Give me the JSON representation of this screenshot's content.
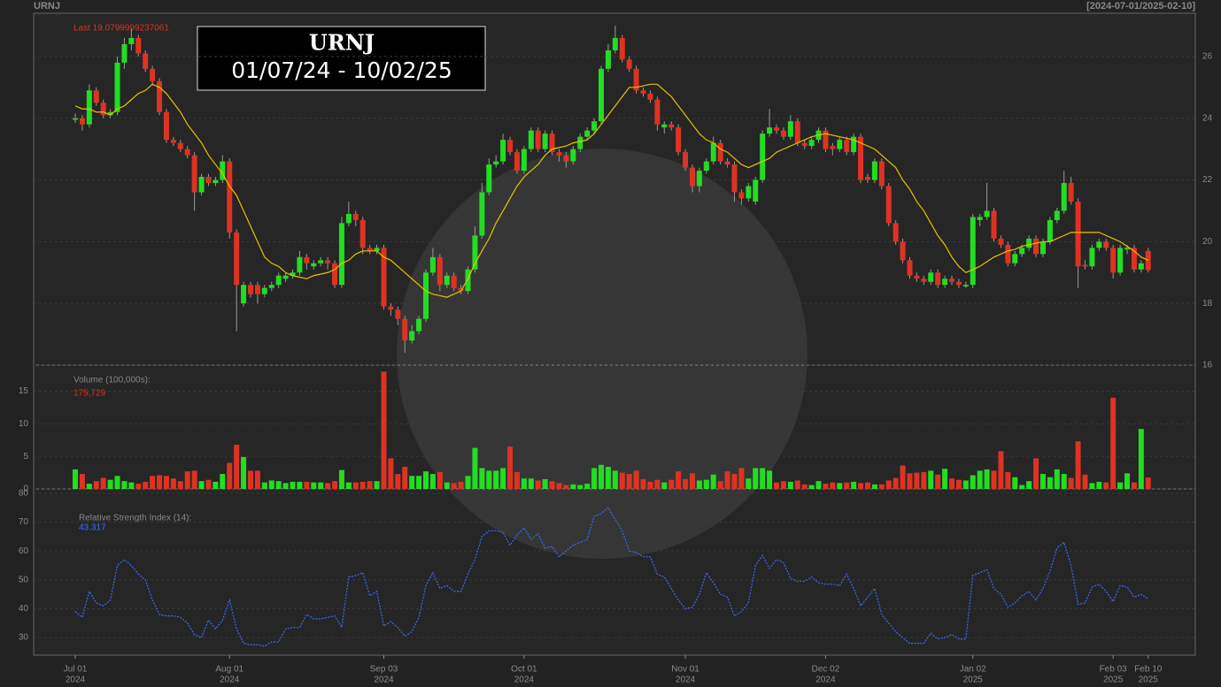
{
  "header": {
    "symbol": "URNJ",
    "range": "[2024-07-01/2025-02-10]"
  },
  "chart_data": [
    {
      "type": "candlestick",
      "title": "URNJ",
      "subtitle": "01/07/24 - 10/02/25",
      "last_label": "Last 19.0799999237061",
      "up_color": "#22dd22",
      "down_color": "#dd3322",
      "sma_color": "#e8c000",
      "ylim": [
        16,
        27.4
      ],
      "yticks": [
        16,
        18,
        20,
        22,
        24,
        26
      ],
      "grid": true,
      "open": [
        23.95,
        24.0,
        23.8,
        24.9,
        24.5,
        24.1,
        24.2,
        25.8,
        26.4,
        26.6,
        26.1,
        25.6,
        25.2,
        24.2,
        23.3,
        23.2,
        23.0,
        22.8,
        21.6,
        22.1,
        21.9,
        22.0,
        22.6,
        20.3,
        18.0,
        18.6,
        18.6,
        18.3,
        18.5,
        18.6,
        18.8,
        18.9,
        19.0,
        19.5,
        19.2,
        19.3,
        19.4,
        19.3,
        18.6,
        20.6,
        20.9,
        20.7,
        19.8,
        19.7,
        19.8,
        17.9,
        17.8,
        17.5,
        16.8,
        17.1,
        17.5,
        19.0,
        19.5,
        18.6,
        18.9,
        18.5,
        18.4,
        19.1,
        20.2,
        21.6,
        22.5,
        22.6,
        23.3,
        22.9,
        22.3,
        23.0,
        23.6,
        23.0,
        23.5,
        22.9,
        22.8,
        22.6,
        23.0,
        23.4,
        23.6,
        23.9,
        25.6,
        26.2,
        26.6,
        25.9,
        25.6,
        24.9,
        24.8,
        24.6,
        23.7,
        23.8,
        23.7,
        22.9,
        22.4,
        21.8,
        22.3,
        22.6,
        23.2,
        22.6,
        22.5,
        21.6,
        21.4,
        21.3,
        22.0,
        23.5,
        23.7,
        23.6,
        23.4,
        23.9,
        23.2,
        23.1,
        23.3,
        23.6,
        23.1,
        23.0,
        23.3,
        22.9,
        23.4,
        22.1,
        22.0,
        22.6,
        21.8,
        20.6,
        20.0,
        19.4,
        18.9,
        18.8,
        18.7,
        19.0,
        18.6,
        18.8,
        18.7,
        18.55,
        18.6,
        20.7,
        20.8,
        21.0,
        20.1,
        19.9,
        19.3,
        19.6,
        19.8,
        20.1,
        19.6,
        20.0,
        20.7,
        21.0,
        21.9,
        21.3,
        19.25,
        19.2,
        19.8,
        20.0,
        19.8,
        19.0,
        19.75,
        19.8,
        19.1,
        19.7
      ],
      "high": [
        24.15,
        24.1,
        25.1,
        25.0,
        24.6,
        24.3,
        26.0,
        26.6,
        26.9,
        26.7,
        26.2,
        25.7,
        25.3,
        24.3,
        23.4,
        23.3,
        23.1,
        22.9,
        22.2,
        22.2,
        22.1,
        22.8,
        22.7,
        20.4,
        18.7,
        18.7,
        18.7,
        18.6,
        18.7,
        19.0,
        19.0,
        19.1,
        19.7,
        19.6,
        19.4,
        19.5,
        19.5,
        19.4,
        20.8,
        21.3,
        21.0,
        20.8,
        19.9,
        19.9,
        19.9,
        18.0,
        17.9,
        17.6,
        17.3,
        17.6,
        19.1,
        19.8,
        19.6,
        19.0,
        19.0,
        18.6,
        19.2,
        20.5,
        21.9,
        22.7,
        22.8,
        23.5,
        23.4,
        23.0,
        23.1,
        23.7,
        23.7,
        23.6,
        23.6,
        23.0,
        22.9,
        23.1,
        23.5,
        23.7,
        24.0,
        25.7,
        26.4,
        27.0,
        26.7,
        26.0,
        25.7,
        25.0,
        24.9,
        24.7,
        23.9,
        23.9,
        23.8,
        23.0,
        22.5,
        22.4,
        22.7,
        23.4,
        23.3,
        22.7,
        22.6,
        21.7,
        21.9,
        22.1,
        23.6,
        24.3,
        23.8,
        23.7,
        24.1,
        24.0,
        23.3,
        23.4,
        23.7,
        23.7,
        23.2,
        23.4,
        23.4,
        23.5,
        23.5,
        22.2,
        22.7,
        22.7,
        21.9,
        20.7,
        20.1,
        19.5,
        19.0,
        18.9,
        19.1,
        19.1,
        18.9,
        18.9,
        18.8,
        18.7,
        20.9,
        20.9,
        21.9,
        21.1,
        20.2,
        20.0,
        19.7,
        19.9,
        20.2,
        20.2,
        20.1,
        20.8,
        21.1,
        22.3,
        22.1,
        21.4,
        19.4,
        19.9,
        20.1,
        20.1,
        19.9,
        19.9,
        19.9,
        19.9,
        19.4,
        19.8
      ],
      "low": [
        23.85,
        23.6,
        23.7,
        24.4,
        24.0,
        24.0,
        24.1,
        25.6,
        26.2,
        26.0,
        25.5,
        25.1,
        24.1,
        23.2,
        23.1,
        22.9,
        22.7,
        21.0,
        21.5,
        21.8,
        21.8,
        21.9,
        20.1,
        17.1,
        17.9,
        18.2,
        18.0,
        18.2,
        18.4,
        18.5,
        18.7,
        18.8,
        18.9,
        19.1,
        19.1,
        19.2,
        19.1,
        18.5,
        18.5,
        20.5,
        20.5,
        19.6,
        19.6,
        19.6,
        17.8,
        17.6,
        17.3,
        16.4,
        16.7,
        17.0,
        17.4,
        18.9,
        18.4,
        18.5,
        18.4,
        18.3,
        18.3,
        19.0,
        20.1,
        21.5,
        22.4,
        22.5,
        22.8,
        22.2,
        22.2,
        22.9,
        22.9,
        22.9,
        22.8,
        22.6,
        22.4,
        22.5,
        22.9,
        23.3,
        23.5,
        23.8,
        25.5,
        26.1,
        25.8,
        25.5,
        24.8,
        24.7,
        24.5,
        23.6,
        23.5,
        23.6,
        22.8,
        22.3,
        21.6,
        21.6,
        22.2,
        22.5,
        22.5,
        22.4,
        21.3,
        21.2,
        21.3,
        21.2,
        21.9,
        23.4,
        23.5,
        23.3,
        23.3,
        23.1,
        23.0,
        23.0,
        23.2,
        22.9,
        22.8,
        22.9,
        22.8,
        22.8,
        21.9,
        21.9,
        21.9,
        21.7,
        20.5,
        19.9,
        19.3,
        18.8,
        18.7,
        18.6,
        18.6,
        18.5,
        18.5,
        18.6,
        18.5,
        18.5,
        18.5,
        20.5,
        20.7,
        20.0,
        19.8,
        19.2,
        19.2,
        19.5,
        19.7,
        19.5,
        19.5,
        19.9,
        20.6,
        20.9,
        21.2,
        18.5,
        19.1,
        19.1,
        19.7,
        19.7,
        18.8,
        18.9,
        19.6,
        19.0,
        19.0,
        19.0
      ],
      "close": [
        24.0,
        23.8,
        24.9,
        24.5,
        24.1,
        24.2,
        25.8,
        26.4,
        26.6,
        26.1,
        25.6,
        25.2,
        24.2,
        23.3,
        23.2,
        23.0,
        22.8,
        21.6,
        22.1,
        21.9,
        22.0,
        22.6,
        20.3,
        18.6,
        18.6,
        18.3,
        18.3,
        18.5,
        18.6,
        18.9,
        18.9,
        19.0,
        19.5,
        19.3,
        19.3,
        19.4,
        19.3,
        18.6,
        20.6,
        20.9,
        20.7,
        19.8,
        19.7,
        19.8,
        17.9,
        17.8,
        17.5,
        16.8,
        17.1,
        17.5,
        19.0,
        19.5,
        18.6,
        18.9,
        18.5,
        18.4,
        19.1,
        20.2,
        21.6,
        22.5,
        22.6,
        23.3,
        22.9,
        22.3,
        23.0,
        23.6,
        23.0,
        23.5,
        22.9,
        22.8,
        22.6,
        23.0,
        23.4,
        23.6,
        23.9,
        25.6,
        26.2,
        26.6,
        25.9,
        25.6,
        24.9,
        24.8,
        24.6,
        23.8,
        23.8,
        23.7,
        22.9,
        22.4,
        21.8,
        22.3,
        22.6,
        23.2,
        22.6,
        22.5,
        21.6,
        21.4,
        21.8,
        22.0,
        23.5,
        23.7,
        23.6,
        23.4,
        23.9,
        23.2,
        23.1,
        23.3,
        23.6,
        23.0,
        23.0,
        23.3,
        22.9,
        23.4,
        22.0,
        22.0,
        22.6,
        21.8,
        20.6,
        20.0,
        19.4,
        18.9,
        18.8,
        18.7,
        19.0,
        18.6,
        18.8,
        18.7,
        18.6,
        18.6,
        20.8,
        20.8,
        21.0,
        20.1,
        19.9,
        19.3,
        19.6,
        19.8,
        20.1,
        19.6,
        20.0,
        20.7,
        21.0,
        21.9,
        21.3,
        19.2,
        19.2,
        19.8,
        20.0,
        19.8,
        19.0,
        19.8,
        19.8,
        19.1,
        19.3,
        19.0799999237061
      ],
      "sma": [
        24.4,
        24.3,
        24.3,
        24.2,
        24.2,
        24.1,
        24.3,
        24.4,
        24.6,
        24.8,
        24.9,
        25.1,
        25.0,
        24.8,
        24.5,
        24.2,
        23.8,
        23.5,
        23.2,
        22.8,
        22.5,
        22.2,
        21.8,
        21.5,
        21.0,
        20.5,
        20.0,
        19.5,
        19.3,
        19.2,
        19.0,
        18.9,
        18.85,
        18.8,
        18.9,
        18.95,
        19.0,
        19.1,
        19.3,
        19.4,
        19.6,
        19.7,
        19.7,
        19.7,
        19.5,
        19.4,
        19.2,
        19.0,
        18.8,
        18.6,
        18.4,
        18.3,
        18.25,
        18.2,
        18.3,
        18.4,
        18.8,
        19.3,
        19.7,
        20.1,
        20.6,
        21.0,
        21.4,
        21.8,
        22.1,
        22.3,
        22.5,
        22.8,
        23.0,
        23.05,
        23.1,
        23.2,
        23.25,
        23.3,
        23.5,
        23.8,
        24.1,
        24.4,
        24.7,
        25.0,
        25.0,
        25.05,
        25.1,
        25.1,
        24.9,
        24.7,
        24.4,
        24.1,
        23.8,
        23.5,
        23.3,
        23.2,
        23.0,
        22.9,
        22.7,
        22.5,
        22.4,
        22.5,
        22.6,
        22.7,
        22.9,
        23.0,
        23.1,
        23.2,
        23.3,
        23.4,
        23.45,
        23.5,
        23.45,
        23.4,
        23.35,
        23.3,
        23.2,
        23.1,
        23.0,
        22.8,
        22.6,
        22.4,
        22.0,
        21.7,
        21.3,
        21.0,
        20.6,
        20.2,
        19.9,
        19.5,
        19.2,
        19.0,
        19.1,
        19.2,
        19.35,
        19.5,
        19.6,
        19.7,
        19.75,
        19.85,
        19.9,
        19.95,
        20.0,
        20.0,
        20.1,
        20.2,
        20.3,
        20.3,
        20.3,
        20.3,
        20.3,
        20.2,
        20.1,
        20.0,
        19.85,
        19.7,
        19.5,
        19.4
      ]
    },
    {
      "type": "bar",
      "title": "Volume (100,000s):",
      "value_label": "175,729",
      "ylim": [
        0,
        19
      ],
      "yticks": [
        0,
        5,
        10,
        15
      ],
      "grid": true,
      "values": [
        3.0,
        2.3,
        0.8,
        1.2,
        1.7,
        1.4,
        2.0,
        1.2,
        1.0,
        0.8,
        1.1,
        2.0,
        2.1,
        2.0,
        1.6,
        1.2,
        2.7,
        2.8,
        1.2,
        1.4,
        1.1,
        2.3,
        4.0,
        6.8,
        4.9,
        2.8,
        2.8,
        1.0,
        1.3,
        1.2,
        0.9,
        1.1,
        1.1,
        1.1,
        1.0,
        1.0,
        0.9,
        1.2,
        2.9,
        1.0,
        1.0,
        1.1,
        1.2,
        1.2,
        18.0,
        4.7,
        2.3,
        3.4,
        2.0,
        2.0,
        2.7,
        2.3,
        2.6,
        1.0,
        0.9,
        1.1,
        2.0,
        6.3,
        3.2,
        2.8,
        2.8,
        3.2,
        6.5,
        2.6,
        1.6,
        1.6,
        1.3,
        1.5,
        1.2,
        0.9,
        0.6,
        0.7,
        0.6,
        0.8,
        3.2,
        3.7,
        3.4,
        2.8,
        2.5,
        2.3,
        2.8,
        1.5,
        1.1,
        1.4,
        1.0,
        1.4,
        2.7,
        1.5,
        2.4,
        1.3,
        1.4,
        2.2,
        1.2,
        2.7,
        2.3,
        3.2,
        1.6,
        3.2,
        3.2,
        2.8,
        1.0,
        1.2,
        1.1,
        1.3,
        0.7,
        0.6,
        1.2,
        0.8,
        1.0,
        0.9,
        1.0,
        1.1,
        0.9,
        1.0,
        0.7,
        0.7,
        1.3,
        1.7,
        3.6,
        2.4,
        2.5,
        2.6,
        2.8,
        2.2,
        3.1,
        1.6,
        1.4,
        1.3,
        2.1,
        2.8,
        3.0,
        2.8,
        5.8,
        2.6,
        1.8,
        0.6,
        1.2,
        4.7,
        2.3,
        1.8,
        3.0,
        2.3,
        1.7,
        7.3,
        2.2,
        0.9,
        1.1,
        1.0,
        14.0,
        1.0,
        2.4,
        1.0,
        9.2,
        1.75729
      ]
    },
    {
      "type": "line",
      "title": "Relative Strength Index (14):",
      "value_label": "43.317",
      "color": "#3a6cff",
      "ylim": [
        23.9,
        81.5
      ],
      "yticks": [
        30,
        40,
        50,
        60,
        70,
        80
      ],
      "grid": true,
      "values": [
        39,
        37,
        46,
        42,
        41,
        43,
        55,
        57,
        55,
        52,
        50,
        43,
        38,
        37.5,
        37.5,
        37,
        35,
        31,
        30,
        36,
        33,
        36,
        43,
        33,
        28,
        27.5,
        27.5,
        27,
        28.5,
        28.5,
        33,
        33.5,
        33.5,
        38,
        36.5,
        36.5,
        37,
        37.5,
        33.5,
        51,
        51.5,
        52.5,
        44.5,
        46,
        34,
        35.5,
        33.5,
        30.5,
        32,
        37,
        48,
        52.5,
        47,
        48,
        46,
        46,
        52,
        57,
        65,
        67,
        67,
        66.5,
        62,
        65.5,
        68,
        64,
        66,
        61,
        61.5,
        58,
        60,
        62,
        63,
        64,
        72,
        73,
        75,
        71,
        67,
        60,
        59.5,
        58,
        58,
        52,
        51,
        47,
        43,
        40,
        40.5,
        45,
        52.5,
        49,
        45,
        44,
        37.5,
        39,
        42,
        55,
        58.5,
        54,
        57,
        56,
        50.5,
        49.5,
        49.5,
        51,
        49,
        48.5,
        48.5,
        48,
        52,
        47,
        41,
        44,
        47,
        38,
        35,
        32,
        30,
        28,
        28,
        28,
        31.5,
        29.5,
        30,
        31,
        29.5,
        29.5,
        51.5,
        52.5,
        53.5,
        47,
        45,
        40.5,
        42,
        44.5,
        46,
        43,
        47,
        53,
        61,
        63,
        55,
        41.5,
        42,
        47.5,
        48.5,
        46,
        42.5,
        48,
        47.5,
        44,
        45,
        43.317
      ],
      "xticks": [
        {
          "value": 0,
          "label": "Jul 01",
          "year": "2024"
        },
        {
          "value": 22,
          "label": "Aug 01",
          "year": "2024"
        },
        {
          "value": 44,
          "label": "Sep 03",
          "year": "2024"
        },
        {
          "value": 64,
          "label": "Oct 01",
          "year": "2024"
        },
        {
          "value": 87,
          "label": "Nov 01",
          "year": "2024"
        },
        {
          "value": 107,
          "label": "Dec 02",
          "year": "2024"
        },
        {
          "value": 128,
          "label": "Jan 02",
          "year": "2025"
        },
        {
          "value": 148,
          "label": "Feb 03",
          "year": "2025"
        },
        {
          "value": 153,
          "label": "Feb 10",
          "year": "2025"
        }
      ]
    }
  ]
}
